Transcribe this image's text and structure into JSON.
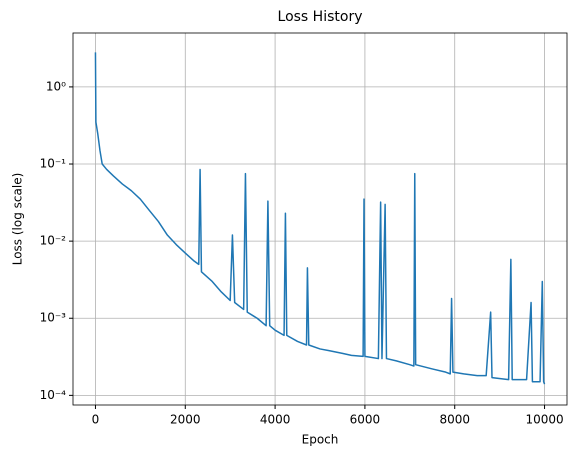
{
  "chart_data": {
    "type": "line",
    "title": "Loss History",
    "xlabel": "Epoch",
    "ylabel": "Loss (log scale)",
    "log_y": true,
    "grid": true,
    "xlim": [
      -500,
      10500
    ],
    "xticks": [
      0,
      2000,
      4000,
      6000,
      8000,
      10000
    ],
    "ylim": [
      7.5e-05,
      5
    ],
    "yticks": [
      {
        "value": 0.0001,
        "label": "10⁻⁴"
      },
      {
        "value": 0.001,
        "label": "10⁻³"
      },
      {
        "value": 0.01,
        "label": "10⁻²"
      },
      {
        "value": 0.1,
        "label": "10⁻¹"
      },
      {
        "value": 1,
        "label": "10⁰"
      }
    ],
    "series": [
      {
        "color": "#1f77b4",
        "x": [
          0,
          10,
          50,
          100,
          150,
          250,
          400,
          600,
          800,
          1000,
          1200,
          1400,
          1600,
          1800,
          2000,
          2200,
          2300,
          2330,
          2360,
          2600,
          2800,
          3000,
          3050,
          3100,
          3300,
          3340,
          3380,
          3600,
          3800,
          3840,
          3880,
          4000,
          4200,
          4230,
          4260,
          4500,
          4700,
          4720,
          4750,
          5000,
          5200,
          5500,
          5700,
          5960,
          5980,
          6000,
          6300,
          6350,
          6380,
          6450,
          6480,
          6700,
          7000,
          7090,
          7110,
          7130,
          7500,
          7800,
          7900,
          7930,
          7960,
          8200,
          8500,
          8700,
          8800,
          8830,
          9200,
          9250,
          9280,
          9600,
          9700,
          9730,
          9900,
          9950,
          9980,
          10000
        ],
        "values": [
          2.8,
          0.35,
          0.25,
          0.15,
          0.1,
          0.085,
          0.07,
          0.055,
          0.045,
          0.035,
          0.025,
          0.018,
          0.012,
          0.009,
          0.007,
          0.0055,
          0.005,
          0.085,
          0.004,
          0.003,
          0.0022,
          0.0017,
          0.012,
          0.0016,
          0.0013,
          0.075,
          0.0012,
          0.001,
          0.0008,
          0.033,
          0.0008,
          0.0007,
          0.0006,
          0.023,
          0.0006,
          0.0005,
          0.00045,
          0.0045,
          0.00045,
          0.0004,
          0.00038,
          0.00035,
          0.00033,
          0.00032,
          0.035,
          0.00032,
          0.0003,
          0.032,
          0.0003,
          0.03,
          0.0003,
          0.00028,
          0.00025,
          0.00024,
          0.075,
          0.00025,
          0.00022,
          0.0002,
          0.00019,
          0.0018,
          0.0002,
          0.00019,
          0.00018,
          0.00018,
          0.0012,
          0.00017,
          0.00016,
          0.0058,
          0.00016,
          0.00016,
          0.0016,
          0.00015,
          0.00015,
          0.003,
          0.00015,
          0.00014
        ]
      }
    ]
  }
}
